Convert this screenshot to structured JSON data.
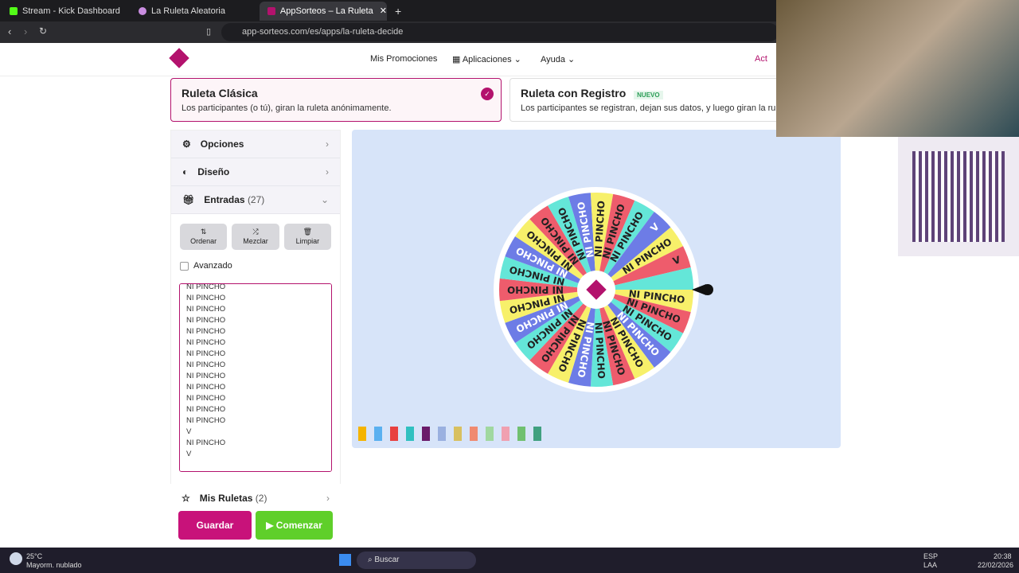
{
  "browser": {
    "tabs": [
      {
        "label": "Stream - Kick Dashboard",
        "color": "#53fc18"
      },
      {
        "label": "La Ruleta Aleatoria",
        "color": "#c98de0"
      },
      {
        "label": "AppSorteos – La Ruleta de la Su",
        "color": "#b3126d",
        "active": true
      }
    ],
    "url": "app-sorteos.com/es/apps/la-ruleta-decide"
  },
  "nav": {
    "items": [
      "Mis Promociones",
      "Aplicaciones",
      "Ayuda"
    ],
    "cta": "Act"
  },
  "cards": [
    {
      "title": "Ruleta Clásica",
      "desc": "Los participantes (o tú), giran la ruleta anónimamente.",
      "selected": true
    },
    {
      "title": "Ruleta con Registro",
      "badge": "NUEVO",
      "desc": "Los participantes se registran, dejan sus datos, y luego giran la rulet"
    }
  ],
  "sidebar": {
    "opciones": "Opciones",
    "diseno": "Diseño",
    "entradas": "Entradas",
    "count": "(27)",
    "ordenar": "Ordenar",
    "mezclar": "Mezclar",
    "limpiar": "Limpiar",
    "avanzado": "Avanzado",
    "misruletas": "Mis Ruletas",
    "misruletas_count": "(2)"
  },
  "entries": [
    "NI PINCHO",
    "NI PINCHO",
    "NI PINCHO",
    "NI PINCHO",
    "NI PINCHO",
    "NI PINCHO",
    "NI PINCHO",
    "NI PINCHO",
    "NI PINCHO",
    "NI PINCHO",
    "NI PINCHO",
    "NI PINCHO",
    "NI PINCHO",
    "NI PINCHO",
    "NI PINCHO",
    "NI PINCHO",
    "NI PINCHO",
    "NI PINCHO",
    "NI PINCHO",
    "NI PINCHO",
    "NI PINCHO",
    "NI PINCHO",
    "NI PINCHO",
    "V",
    "NI PINCHO",
    "V",
    ""
  ],
  "wheel_colors": [
    "#f7f06a",
    "#ee5c6c",
    "#64e6d8",
    "#6d7ce6"
  ],
  "actions": {
    "guardar": "Guardar",
    "comenzar": "▶ Comenzar"
  },
  "taskbar": {
    "temp": "25°C",
    "weather": "Mayorm. nublado",
    "search": "Buscar",
    "lang1": "ESP",
    "lang2": "LAA",
    "time": "20:38",
    "date": "22/02/2026"
  }
}
